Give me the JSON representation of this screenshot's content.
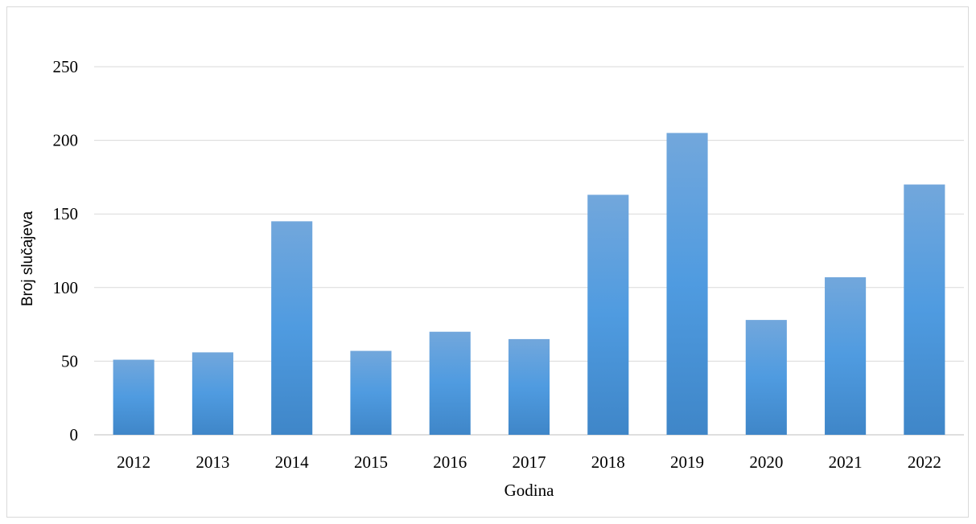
{
  "chart_data": {
    "type": "bar",
    "title": "",
    "xlabel": "Godina",
    "ylabel": "Broj slučajeva",
    "categories": [
      "2012",
      "2013",
      "2014",
      "2015",
      "2016",
      "2017",
      "2018",
      "2019",
      "2020",
      "2021",
      "2022"
    ],
    "values": [
      51,
      56,
      145,
      57,
      70,
      65,
      163,
      205,
      78,
      107,
      170
    ],
    "ylim": [
      0,
      250
    ],
    "yticks": [
      0,
      50,
      100,
      150,
      200,
      250
    ],
    "grid": true,
    "legend": "none",
    "colors": {
      "bar_top": "#72a7dc",
      "bar_mid": "#4f9be0",
      "bar_bottom": "#3f86c8",
      "grid": "#d9d9d9",
      "axis": "#bfbfbf"
    }
  }
}
